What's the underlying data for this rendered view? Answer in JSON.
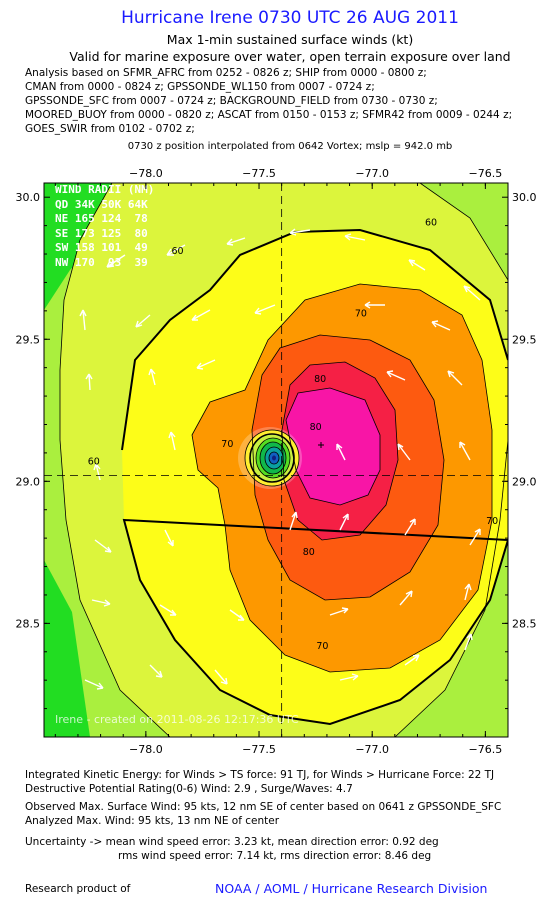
{
  "header": {
    "title": "Hurricane Irene 0730 UTC 26 AUG 2011",
    "subtitle1": "Max 1-min sustained surface winds (kt)",
    "subtitle2": "Valid for marine exposure over water, open terrain exposure over land"
  },
  "analysis_lines": [
    "Analysis based on SFMR_AFRC from 0252 - 0826 z; SHIP from 0000 - 0800 z;",
    "CMAN from 0000 - 0824 z; GPSSONDE_WL150 from 0007 - 0724 z;",
    "GPSSONDE_SFC from 0007 - 0724 z; BACKGROUND_FIELD from 0730 - 0730 z;",
    "MOORED_BUOY from 0000 - 0820 z; ASCAT from 0150 - 0153 z; SFMR42 from 0009 - 0244 z;",
    "GOES_SWIR from 0102 - 0702 z;"
  ],
  "center_line": "0730 z position interpolated from 0642 Vortex; mslp = 942.0 mb",
  "wind_radii": {
    "header": "WIND RADII (NM)",
    "rows": [
      "QD 34K 50K 64K",
      "NE 165 124  78",
      "SE 173 125  80",
      "SW 158 101  49",
      "NW 170  93  39"
    ]
  },
  "watermark": "Irene - created on 2011-08-26 12:17:36 UTC",
  "chart_data": {
    "type": "heatmap",
    "x": {
      "range": [
        -78.45,
        -76.4
      ],
      "ticks": [
        -78.0,
        -77.5,
        -77.0,
        -76.5
      ],
      "tick_labels": [
        "−78.0",
        "−77.5",
        "−77.0",
        "−76.5"
      ]
    },
    "y": {
      "range": [
        28.1,
        30.05
      ],
      "ticks": [
        28.5,
        29.0,
        29.5,
        30.0
      ],
      "tick_labels": [
        "28.5",
        "29.0",
        "29.5",
        "30.0"
      ]
    },
    "center": {
      "lon": -77.4,
      "lat": 29.02
    },
    "contour_labels": [
      {
        "text": "60",
        "lon": -78.23,
        "lat": 29.06
      },
      {
        "text": "60",
        "lon": -76.74,
        "lat": 29.9
      },
      {
        "text": "60",
        "lon": -77.86,
        "lat": 29.8
      },
      {
        "text": "70",
        "lon": -77.64,
        "lat": 29.12
      },
      {
        "text": "70",
        "lon": -77.05,
        "lat": 29.58
      },
      {
        "text": "70",
        "lon": -76.47,
        "lat": 28.85
      },
      {
        "text": "70",
        "lon": -77.22,
        "lat": 28.41
      },
      {
        "text": "80",
        "lon": -77.23,
        "lat": 29.35
      },
      {
        "text": "80",
        "lon": -77.25,
        "lat": 29.18
      },
      {
        "text": "80",
        "lon": -77.28,
        "lat": 28.74
      }
    ]
  },
  "footer": {
    "ike": "Integrated Kinetic Energy:  for Winds > TS force: 91 TJ,  for Winds > Hurricane Force: 22 TJ",
    "dpr": "Destructive Potential Rating(0-6)   Wind: 2.9 , Surge/Waves: 4.7",
    "observed": "Observed Max. Surface Wind: 95 kts, 12 nm SE of center based on 0641 z GPSSONDE_SFC",
    "analyzed": "Analyzed Max. Wind: 95 kts, 13 nm NE of center",
    "uncertainty1": "Uncertainty -> mean wind speed error: 3.23 kt,   mean direction error: 0.92 deg",
    "uncertainty2": "rms wind speed error: 7.14 kt,   rms direction error: 8.46 deg",
    "research": "Research product of",
    "noaa": "NOAA / AOML / Hurricane Research Division"
  }
}
